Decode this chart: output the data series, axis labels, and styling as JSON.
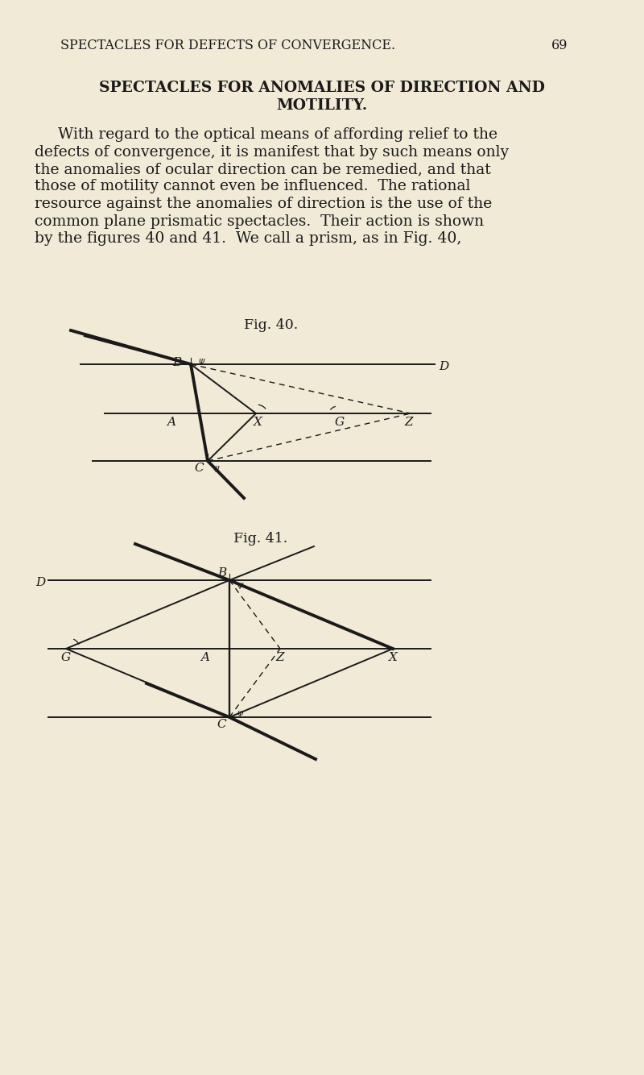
{
  "bg_color": "#f0ead6",
  "text_color": "#1a1a1a",
  "header": "SPECTACLES FOR DEFECTS OF CONVERGENCE.",
  "page_num": "69",
  "section_title_line1": "SPECTACLES FOR ANOMALIES OF DIRECTION AND",
  "section_title_line2": "MOTILITY.",
  "para_line1": "With regard to the optical means of affording relief to the",
  "para_line2": "defects of convergence, it is manifest that by such means only",
  "para_line3": "the anomalies of ocular direction can be remedied, and that",
  "para_line4": "those of motility cannot even be influenced.  The rational",
  "para_line5": "resource against the anomalies of direction is the use of the",
  "para_line6": "common plane prismatic spectacles.  Their action is shown",
  "para_line7": "by the figures 40 and 41.  We call a prism, as in Fig. 40,",
  "fig40_label": "Fig. 40.",
  "fig41_label": "Fig. 41."
}
